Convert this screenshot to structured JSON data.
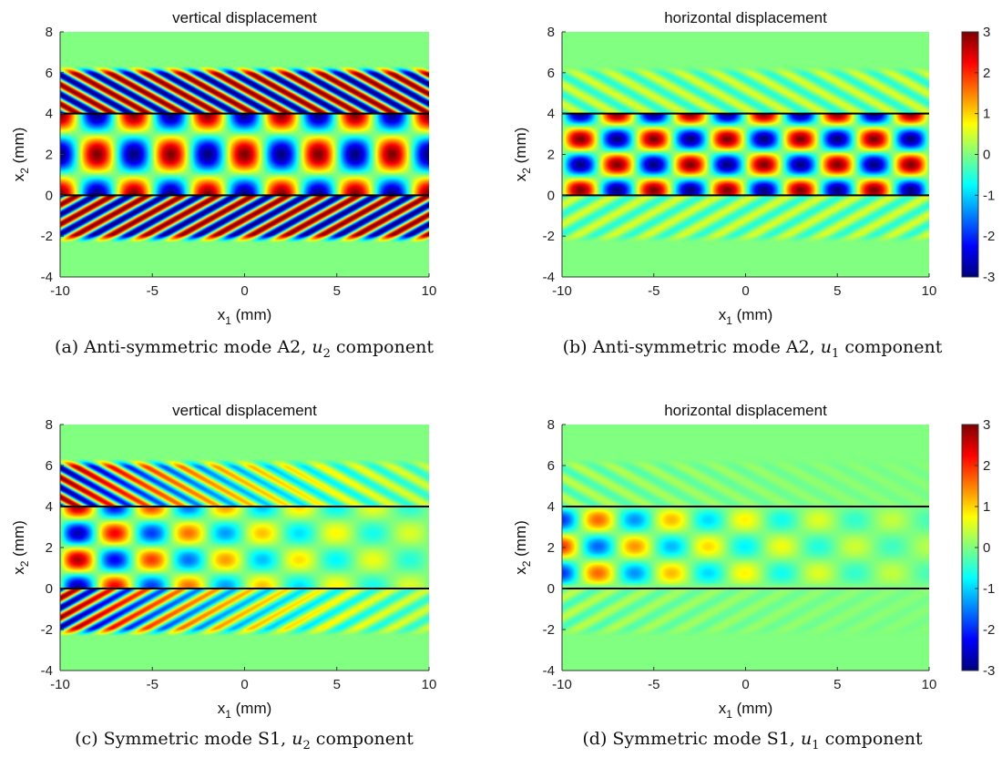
{
  "chart_data": [
    {
      "id": "a",
      "type": "heatmap",
      "title": "vertical displacement",
      "xlabel": "x",
      "xlabel_sub": "1",
      "xlabel_unit": " (mm)",
      "ylabel": "x",
      "ylabel_sub": "2",
      "ylabel_unit": " (mm)",
      "xlim": [
        -10,
        10
      ],
      "ylim": [
        -4,
        8
      ],
      "xticks": [
        "-10",
        "-5",
        "0",
        "5",
        "10"
      ],
      "yticks": [
        "-4",
        "-2",
        "0",
        "2",
        "4",
        "6",
        "8"
      ],
      "plate_boundaries": [
        0,
        4
      ],
      "field": {
        "component": "u2",
        "mode": "antisymmetric",
        "amplitude": 3,
        "decay": 0
      },
      "colorbar": false,
      "caption": {
        "prefix": "(a) Anti-symmetric mode A2, ",
        "var": "u",
        "sub": "2",
        "suffix": " component"
      }
    },
    {
      "id": "b",
      "type": "heatmap",
      "title": "horizontal displacement",
      "xlabel": "x",
      "xlabel_sub": "1",
      "xlabel_unit": " (mm)",
      "ylabel": "x",
      "ylabel_sub": "2",
      "ylabel_unit": " (mm)",
      "xlim": [
        -10,
        10
      ],
      "ylim": [
        -4,
        8
      ],
      "xticks": [
        "-10",
        "-5",
        "0",
        "5",
        "10"
      ],
      "yticks": [
        "-4",
        "-2",
        "0",
        "2",
        "4",
        "6",
        "8"
      ],
      "plate_boundaries": [
        0,
        4
      ],
      "field": {
        "component": "u1",
        "mode": "antisymmetric",
        "amplitude": 3,
        "decay": 0
      },
      "colorbar": true,
      "colorbar_ticks": [
        "-3",
        "-2",
        "-1",
        "0",
        "1",
        "2",
        "3"
      ],
      "clim": [
        -3,
        3
      ],
      "caption": {
        "prefix": "(b) Anti-symmetric mode A2, ",
        "var": "u",
        "sub": "1",
        "suffix": " component"
      }
    },
    {
      "id": "c",
      "type": "heatmap",
      "title": "vertical displacement",
      "xlabel": "x",
      "xlabel_sub": "1",
      "xlabel_unit": " (mm)",
      "ylabel": "x",
      "ylabel_sub": "2",
      "ylabel_unit": " (mm)",
      "xlim": [
        -10,
        10
      ],
      "ylim": [
        -4,
        8
      ],
      "xticks": [
        "-10",
        "-5",
        "0",
        "5",
        "10"
      ],
      "yticks": [
        "-4",
        "-2",
        "0",
        "2",
        "4",
        "6",
        "8"
      ],
      "plate_boundaries": [
        0,
        4
      ],
      "field": {
        "component": "u2",
        "mode": "symmetric",
        "amplitude": 3,
        "decay": 0.09
      },
      "colorbar": false,
      "caption": {
        "prefix": "(c) Symmetric mode S1, ",
        "var": "u",
        "sub": "2",
        "suffix": " component"
      }
    },
    {
      "id": "d",
      "type": "heatmap",
      "title": "horizontal displacement",
      "xlabel": "x",
      "xlabel_sub": "1",
      "xlabel_unit": " (mm)",
      "ylabel": "x",
      "ylabel_sub": "2",
      "ylabel_unit": " (mm)",
      "xlim": [
        -10,
        10
      ],
      "ylim": [
        -4,
        8
      ],
      "xticks": [
        "-10",
        "-5",
        "0",
        "5",
        "10"
      ],
      "yticks": [
        "-4",
        "-2",
        "0",
        "2",
        "4",
        "6",
        "8"
      ],
      "plate_boundaries": [
        0,
        4
      ],
      "field": {
        "component": "u1",
        "mode": "symmetric",
        "amplitude": 2.2,
        "decay": 0.09
      },
      "colorbar": true,
      "colorbar_ticks": [
        "-3",
        "-2",
        "-1",
        "0",
        "1",
        "2",
        "3"
      ],
      "clim": [
        -3,
        3
      ],
      "caption": {
        "prefix": "(d) Symmetric mode S1, ",
        "var": "u",
        "sub": "1",
        "suffix": " component"
      }
    }
  ]
}
